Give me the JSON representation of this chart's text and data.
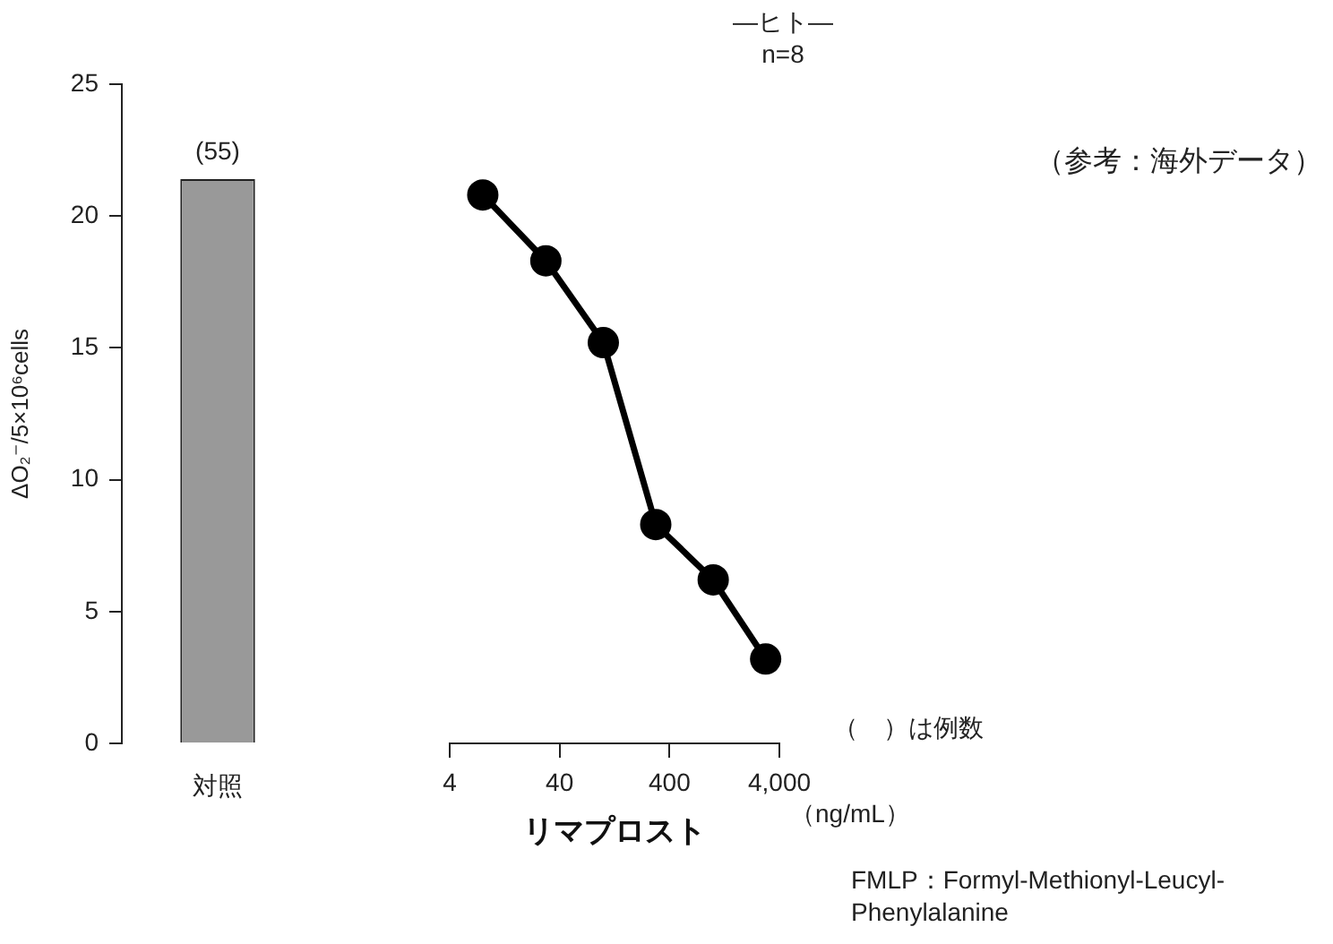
{
  "chart_data": [
    {
      "type": "bar",
      "ylabel": "ΔO₂⁻/5×10⁶cells",
      "categories": [
        "対照"
      ],
      "values": [
        21.4
      ],
      "color": "#999999",
      "annotations": [
        {
          "text": "(55)",
          "x": "対照",
          "y": 21.4
        }
      ],
      "ylim": [
        0,
        25
      ],
      "yticks": [
        0,
        5,
        10,
        15,
        20,
        25
      ]
    },
    {
      "type": "line",
      "title": "―ヒト―",
      "subtitle": "n=8",
      "xlabel": "リマプロスト",
      "x": [
        8,
        30,
        100,
        300,
        1000,
        3000
      ],
      "values": [
        20.8,
        18.3,
        15.2,
        8.3,
        6.2,
        3.2
      ],
      "color": "#000000",
      "marker": "circle",
      "line_style": "solid",
      "log": "x",
      "xlim": [
        4,
        4000
      ],
      "xticks": [
        4,
        40,
        400,
        {
          "value": 4000,
          "label": "4,000"
        }
      ],
      "ylim": [
        0,
        25
      ],
      "tick_labels": "x",
      "annotations": [
        "（参考：海外データ）",
        "（　）は例数",
        "（ng/mL）",
        "FMLP：Formyl-Methionyl-Leucyl-Phenylalanine"
      ]
    }
  ]
}
